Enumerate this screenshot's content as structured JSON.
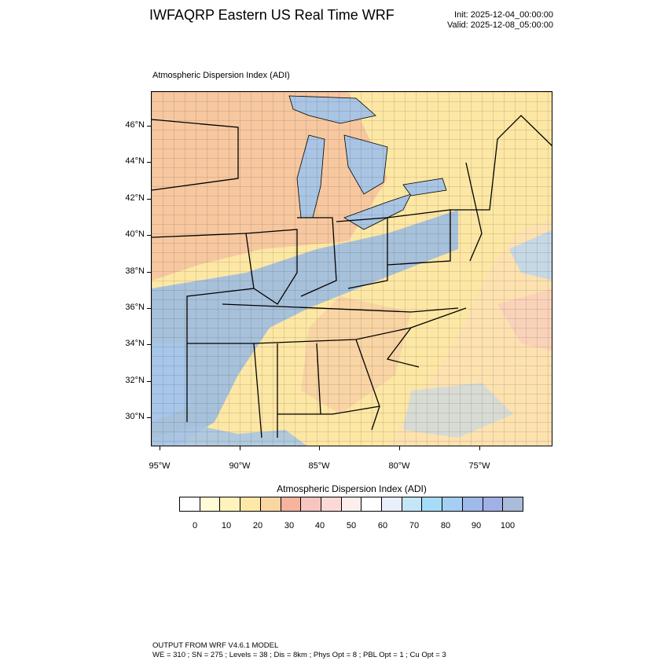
{
  "header": {
    "title": "IWFAQRP Eastern US Real Time WRF",
    "init": "Init: 2025-12-04_00:00:00",
    "valid": "Valid: 2025-12-08_05:00:00"
  },
  "map": {
    "title": "Atmospheric Dispersion Index   (ADI)",
    "lat_labels": [
      "46°N",
      "44°N",
      "42°N",
      "40°N",
      "38°N",
      "36°N",
      "34°N",
      "32°N",
      "30°N"
    ],
    "lon_labels": [
      "95°W",
      "90°W",
      "85°W",
      "80°W",
      "75°W"
    ],
    "colors": {
      "land_base": "#fde7a4",
      "water": "#a9c5e3",
      "low_adi": "#f7c3a0",
      "high_adi": "#9fbde0",
      "border": "#000000"
    }
  },
  "colorbar": {
    "title": "Atmospheric Dispersion Index  (ADI)",
    "labels": [
      "0",
      "10",
      "20",
      "30",
      "40",
      "50",
      "60",
      "70",
      "80",
      "90",
      "100"
    ],
    "colors": [
      "#ffffff",
      "#fffbd6",
      "#fff2bc",
      "#fde8a6",
      "#fbd6a3",
      "#f6b39d",
      "#f7c5bf",
      "#fbdad6",
      "#fdeeee",
      "#ffffff",
      "#e9effb",
      "#c3e7f9",
      "#a6dcf7",
      "#a6cdf2",
      "#9fb9ea",
      "#a1b1e6",
      "#a9bcd9"
    ]
  },
  "footer": {
    "line1": "OUTPUT FROM WRF V4.6.1 MODEL",
    "line2": "WE = 310 ; SN = 275 ; Levels = 38 ; Dis = 8km ; Phys Opt = 8 ; PBL Opt = 1 ; Cu Opt = 3"
  }
}
